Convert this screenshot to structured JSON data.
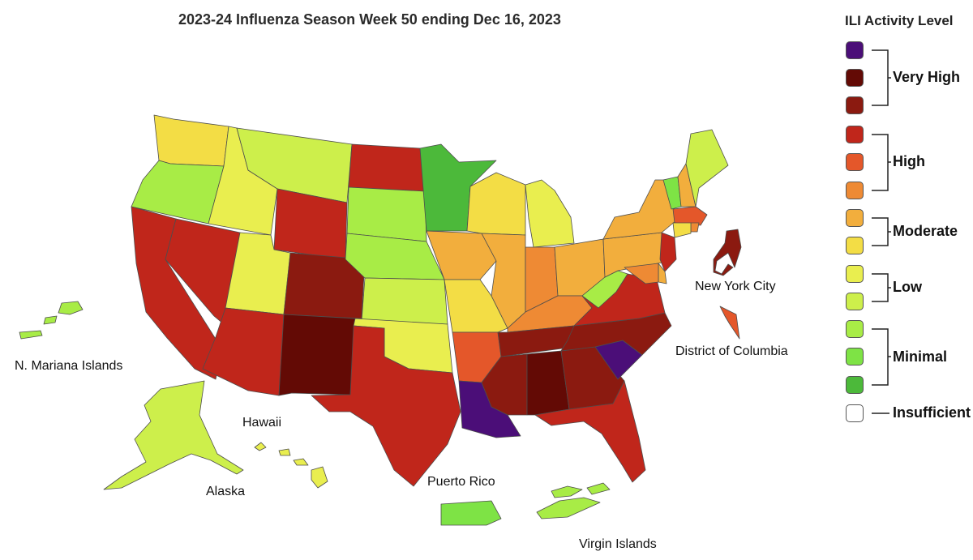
{
  "title": "2023-24 Influenza Season Week 50 ending Dec 16, 2023",
  "legend": {
    "title": "ILI Activity Level",
    "levels": [
      {
        "level": 13,
        "color": "#4b0e78"
      },
      {
        "level": 12,
        "color": "#630a05"
      },
      {
        "level": 11,
        "color": "#8b1a10"
      },
      {
        "level": 10,
        "color": "#c0261b"
      },
      {
        "level": 9,
        "color": "#e4572a"
      },
      {
        "level": 8,
        "color": "#ee8a34"
      },
      {
        "level": 7,
        "color": "#f2ae3d"
      },
      {
        "level": 6,
        "color": "#f3dd45"
      },
      {
        "level": 5,
        "color": "#e9ee4f"
      },
      {
        "level": 4,
        "color": "#cdef4b"
      },
      {
        "level": 3,
        "color": "#a8ec46"
      },
      {
        "level": 2,
        "color": "#7ee345"
      },
      {
        "level": 1,
        "color": "#4cb93a"
      },
      {
        "level": 0,
        "color": "#ffffff"
      }
    ],
    "groups": {
      "very_high": "Very High",
      "high": "High",
      "moderate": "Moderate",
      "low": "Low",
      "minimal": "Minimal",
      "insufficient": "Insufficient Data"
    }
  },
  "labels": {
    "nmi": "N. Mariana Islands",
    "hawaii": "Hawaii",
    "alaska": "Alaska",
    "puerto_rico": "Puerto Rico",
    "virgin_islands": "Virgin Islands",
    "nyc": "New York City",
    "dc": "District of Columbia"
  },
  "activity": {
    "WA": 6,
    "OR": 3,
    "CA": 10,
    "NV": 10,
    "ID": 5,
    "MT": 4,
    "WY": 10,
    "UT": 5,
    "AZ": 10,
    "CO": 11,
    "NM": 12,
    "ND": 10,
    "SD": 3,
    "NE": 3,
    "KS": 4,
    "OK": 5,
    "TX": 10,
    "MN": 1,
    "IA": 7,
    "MO": 6,
    "AR": 9,
    "LA": 13,
    "WI": 6,
    "IL": 7,
    "MI": 5,
    "IN": 8,
    "OH": 7,
    "KY": 8,
    "TN": 11,
    "MS": 11,
    "AL": 12,
    "GA": 11,
    "FL": 10,
    "SC": 13,
    "NC": 11,
    "VA": 10,
    "WV": 3,
    "PA": 7,
    "NY": 7,
    "VT": 2,
    "NH": 7,
    "ME": 4,
    "MA": 9,
    "RI": 8,
    "CT": 6,
    "NJ": 10,
    "DE": 7,
    "MD": 8,
    "NYC": 11,
    "DC": 9,
    "AK": 4,
    "HI": 5,
    "PR": 2,
    "VI": 3,
    "MP": 3
  }
}
